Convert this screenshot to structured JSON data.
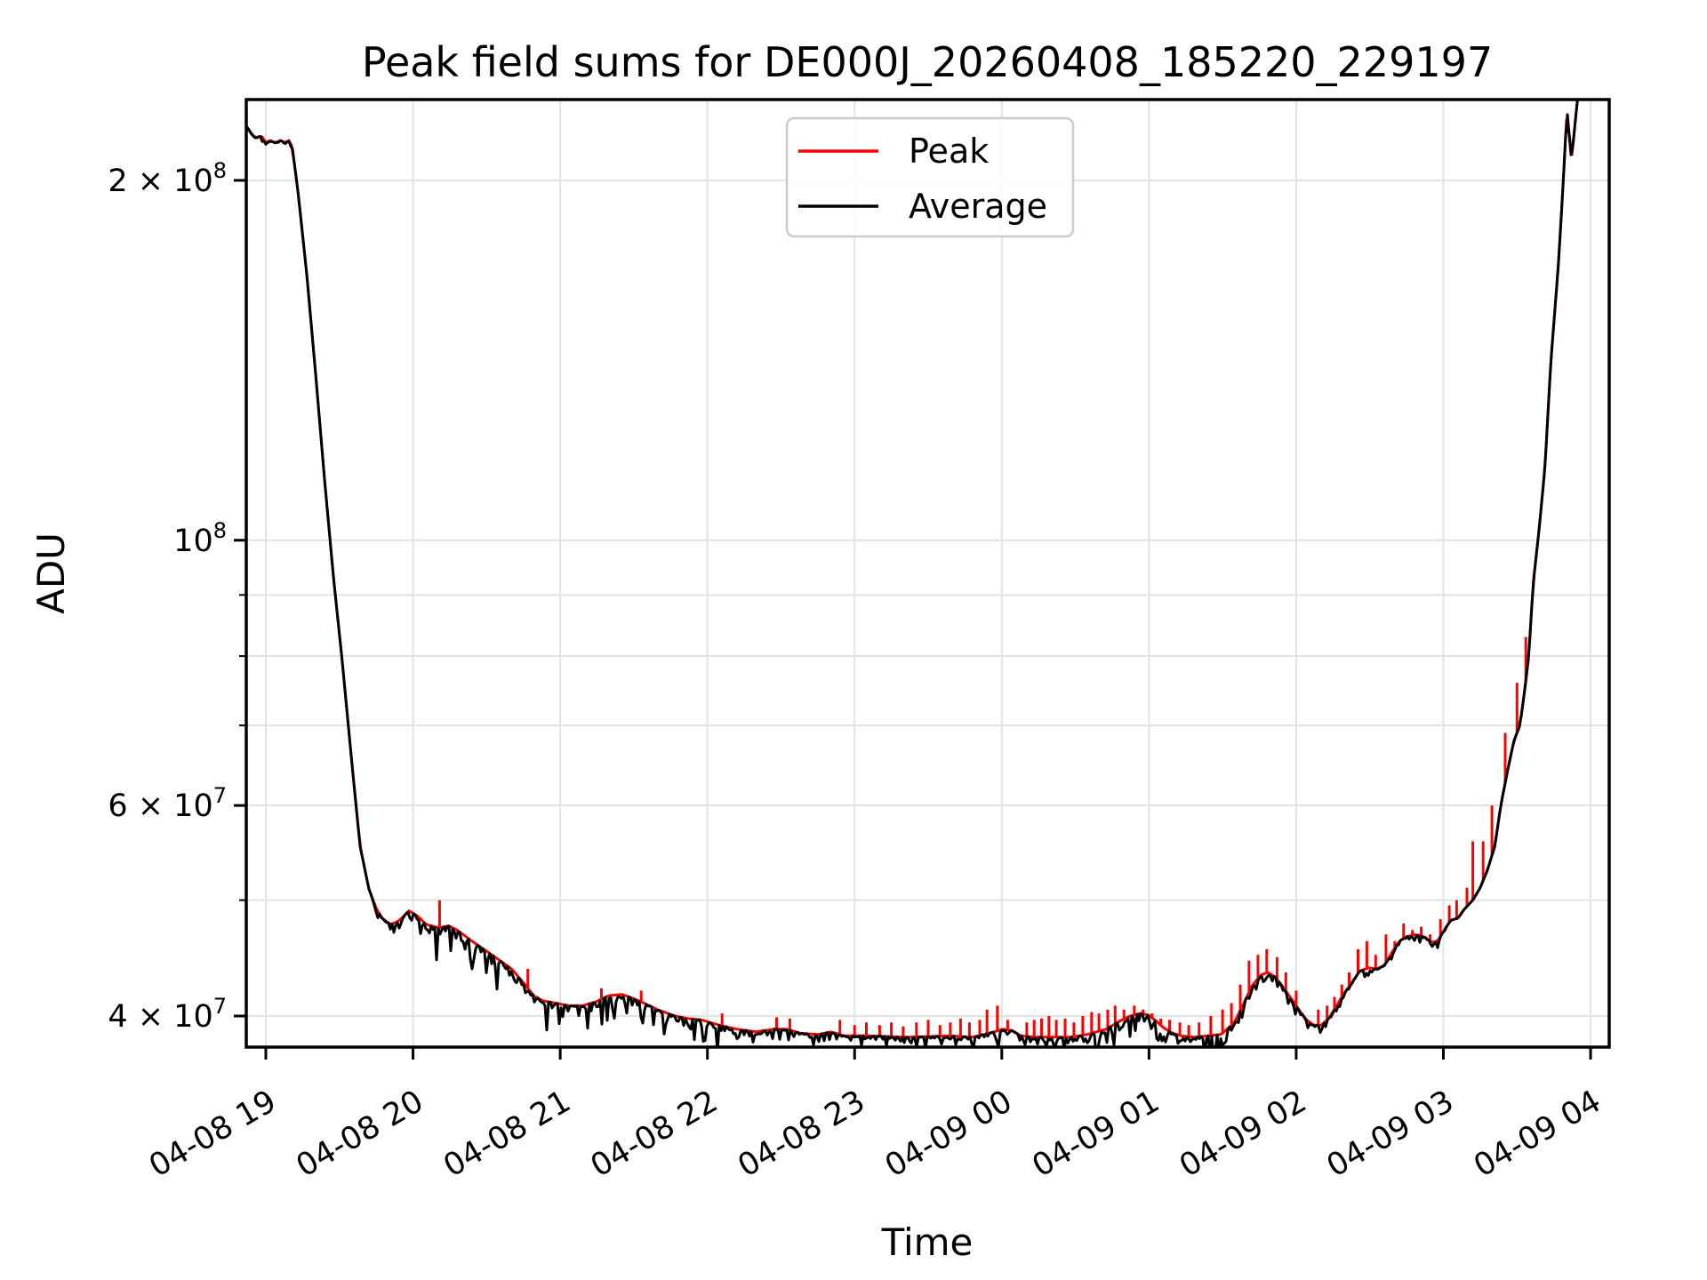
{
  "title": "Peak field sums for DE000J_20260408_185220_229197",
  "colors": {
    "peak": "#ff0000",
    "average": "#000000",
    "grid": "#e2e2e2",
    "spine": "#000000",
    "background": "#ffffff",
    "legend_border": "#cccccc"
  },
  "axes": {
    "x_label": "Time",
    "y_label": "ADU",
    "x_ticks": [
      {
        "hour": 19,
        "label": "04-08 19"
      },
      {
        "hour": 20,
        "label": "04-08 20"
      },
      {
        "hour": 21,
        "label": "04-08 21"
      },
      {
        "hour": 22,
        "label": "04-08 22"
      },
      {
        "hour": 23,
        "label": "04-08 23"
      },
      {
        "hour": 24,
        "label": "04-09 00"
      },
      {
        "hour": 25,
        "label": "04-09 01"
      },
      {
        "hour": 26,
        "label": "04-09 02"
      },
      {
        "hour": 27,
        "label": "04-09 03"
      },
      {
        "hour": 28,
        "label": "04-09 04"
      }
    ],
    "y_ticks_major": [
      {
        "prefix": "2 × 10",
        "sup": "8",
        "value": 200000000
      },
      {
        "prefix": "10",
        "sup": "8",
        "value": 100000000
      },
      {
        "prefix": "6 × 10",
        "sup": "7",
        "value": 60000000
      },
      {
        "prefix": "4 × 10",
        "sup": "7",
        "value": 40000000
      }
    ],
    "y_ticks_minor": [
      50000000,
      70000000,
      80000000,
      90000000
    ],
    "y_grid_values": [
      40000000,
      50000000,
      60000000,
      70000000,
      80000000,
      90000000,
      100000000,
      200000000
    ]
  },
  "legend": {
    "entries": [
      {
        "label": "Peak",
        "color": "#ff0000"
      },
      {
        "label": "Average",
        "color": "#000000"
      }
    ]
  },
  "chart_data": {
    "type": "line",
    "title": "Peak field sums for DE000J_20260408_185220_229197",
    "xlabel": "Time",
    "ylabel": "ADU",
    "yscale": "log",
    "grid": true,
    "legend_position": "upper center",
    "x_unit": "decimal hours from 04-08 00:00 (24+ = 04-09)",
    "xlim": [
      18.867,
      28.124
    ],
    "ylim": [
      37700000,
      233000000
    ],
    "series": [
      {
        "name": "Peak",
        "color": "#ff0000",
        "note": "same baseline as Average plus upward spikes",
        "spikes": [
          [
            20.18,
            50000000.0
          ],
          [
            20.78,
            43800000.0
          ],
          [
            21.28,
            42200000.0
          ],
          [
            21.55,
            42000000.0
          ],
          [
            22.1,
            40200000.0
          ],
          [
            22.47,
            39900000.0
          ],
          [
            22.56,
            39800000.0
          ],
          [
            22.9,
            39700000.0
          ],
          [
            23.0,
            39300000.0
          ],
          [
            23.08,
            39500000.0
          ],
          [
            23.17,
            39300000.0
          ],
          [
            23.25,
            39500000.0
          ],
          [
            23.33,
            39200000.0
          ],
          [
            23.42,
            39500000.0
          ],
          [
            23.5,
            39700000.0
          ],
          [
            23.58,
            39300000.0
          ],
          [
            23.65,
            39500000.0
          ],
          [
            23.72,
            39800000.0
          ],
          [
            23.78,
            39500000.0
          ],
          [
            23.85,
            39700000.0
          ],
          [
            23.9,
            40500000.0
          ],
          [
            23.97,
            40800000.0
          ],
          [
            24.04,
            39700000.0
          ],
          [
            24.17,
            39500000.0
          ],
          [
            24.22,
            39700000.0
          ],
          [
            24.27,
            39800000.0
          ],
          [
            24.32,
            40000000.0
          ],
          [
            24.37,
            39700000.0
          ],
          [
            24.43,
            39800000.0
          ],
          [
            24.49,
            39500000.0
          ],
          [
            24.55,
            40000000.0
          ],
          [
            24.61,
            40300000.0
          ],
          [
            24.66,
            40200000.0
          ],
          [
            24.72,
            40500000.0
          ],
          [
            24.77,
            40800000.0
          ],
          [
            24.83,
            40500000.0
          ],
          [
            24.9,
            40800000.0
          ],
          [
            24.96,
            40500000.0
          ],
          [
            25.02,
            40200000.0
          ],
          [
            25.08,
            39800000.0
          ],
          [
            25.14,
            39700000.0
          ],
          [
            25.21,
            39500000.0
          ],
          [
            25.27,
            39300000.0
          ],
          [
            25.34,
            39500000.0
          ],
          [
            25.42,
            40000000.0
          ],
          [
            25.5,
            40500000.0
          ],
          [
            25.56,
            41000000.0
          ],
          [
            25.62,
            42500000.0
          ],
          [
            25.68,
            44500000.0
          ],
          [
            25.74,
            45000000.0
          ],
          [
            25.8,
            45500000.0
          ],
          [
            25.87,
            44800000.0
          ],
          [
            25.93,
            43500000.0
          ],
          [
            26.0,
            42000000.0
          ],
          [
            26.15,
            40500000.0
          ],
          [
            26.21,
            40800000.0
          ],
          [
            26.26,
            41500000.0
          ],
          [
            26.31,
            42500000.0
          ],
          [
            26.36,
            43500000.0
          ],
          [
            26.42,
            45500000.0
          ],
          [
            26.48,
            46200000.0
          ],
          [
            26.54,
            45000000.0
          ],
          [
            26.61,
            46800000.0
          ],
          [
            26.67,
            46200000.0
          ],
          [
            26.73,
            47800000.0
          ],
          [
            26.79,
            47200000.0
          ],
          [
            26.85,
            47500000.0
          ],
          [
            26.91,
            46800000.0
          ],
          [
            26.98,
            48200000.0
          ],
          [
            27.04,
            49500000.0
          ],
          [
            27.09,
            50000000.0
          ],
          [
            27.16,
            51200000.0
          ],
          [
            27.2,
            56000000.0
          ],
          [
            27.27,
            56000000.0
          ],
          [
            27.33,
            60000000.0
          ],
          [
            27.42,
            69000000.0
          ],
          [
            27.5,
            76000000.0
          ],
          [
            27.56,
            83000000.0
          ]
        ]
      },
      {
        "name": "Average",
        "color": "#000000",
        "points": [
          [
            18.87,
            222000000.0
          ],
          [
            18.9,
            219000000.0
          ],
          [
            18.93,
            217000000.0
          ],
          [
            18.97,
            218000000.0
          ],
          [
            19.0,
            215000000.0
          ],
          [
            19.03,
            216000000.0
          ],
          [
            19.06,
            215000000.0
          ],
          [
            19.1,
            216000000.0
          ],
          [
            19.13,
            215000000.0
          ],
          [
            19.16,
            216000000.0
          ],
          [
            19.18,
            213000000.0
          ],
          [
            19.22,
            195000000.0
          ],
          [
            19.28,
            166000000.0
          ],
          [
            19.34,
            137000000.0
          ],
          [
            19.4,
            112000000.0
          ],
          [
            19.46,
            93000000.0
          ],
          [
            19.52,
            79000000.0
          ],
          [
            19.58,
            66000000.0
          ],
          [
            19.64,
            55500000.0
          ],
          [
            19.7,
            51100000.0
          ],
          [
            19.75,
            49200000.0
          ],
          [
            19.79,
            48300000.0
          ],
          [
            19.85,
            47700000.0
          ],
          [
            19.91,
            48100000.0
          ],
          [
            19.97,
            49000000.0
          ],
          [
            20.03,
            48500000.0
          ],
          [
            20.09,
            47700000.0
          ],
          [
            20.18,
            47400000.0
          ],
          [
            20.24,
            47600000.0
          ],
          [
            20.3,
            47200000.0
          ],
          [
            20.39,
            46300000.0
          ],
          [
            20.48,
            45500000.0
          ],
          [
            20.58,
            44600000.0
          ],
          [
            20.67,
            43800000.0
          ],
          [
            20.76,
            42500000.0
          ],
          [
            20.82,
            41600000.0
          ],
          [
            20.88,
            41200000.0
          ],
          [
            20.97,
            41000000.0
          ],
          [
            21.06,
            40800000.0
          ],
          [
            21.15,
            40800000.0
          ],
          [
            21.24,
            41100000.0
          ],
          [
            21.33,
            41600000.0
          ],
          [
            21.42,
            41700000.0
          ],
          [
            21.49,
            41400000.0
          ],
          [
            21.57,
            41000000.0
          ],
          [
            21.66,
            40500000.0
          ],
          [
            21.78,
            40000000.0
          ],
          [
            21.87,
            39800000.0
          ],
          [
            21.96,
            39700000.0
          ],
          [
            22.08,
            39300000.0
          ],
          [
            22.2,
            39000000.0
          ],
          [
            22.33,
            38800000.0
          ],
          [
            22.45,
            39000000.0
          ],
          [
            22.54,
            39000000.0
          ],
          [
            22.63,
            38700000.0
          ],
          [
            22.75,
            38600000.0
          ],
          [
            22.84,
            38800000.0
          ],
          [
            22.93,
            38500000.0
          ],
          [
            23.1,
            38500000.0
          ],
          [
            23.35,
            38400000.0
          ],
          [
            23.65,
            38500000.0
          ],
          [
            23.8,
            38400000.0
          ],
          [
            23.95,
            38800000.0
          ],
          [
            24.01,
            39000000.0
          ],
          [
            24.07,
            38900000.0
          ],
          [
            24.13,
            38500000.0
          ],
          [
            24.22,
            38400000.0
          ],
          [
            24.35,
            38400000.0
          ],
          [
            24.46,
            38400000.0
          ],
          [
            24.58,
            38600000.0
          ],
          [
            24.71,
            39000000.0
          ],
          [
            24.8,
            39600000.0
          ],
          [
            24.87,
            40000000.0
          ],
          [
            24.94,
            40200000.0
          ],
          [
            24.99,
            40100000.0
          ],
          [
            25.04,
            39700000.0
          ],
          [
            25.1,
            39100000.0
          ],
          [
            25.16,
            38700000.0
          ],
          [
            25.22,
            38500000.0
          ],
          [
            25.31,
            38400000.0
          ],
          [
            25.4,
            38500000.0
          ],
          [
            25.49,
            38600000.0
          ],
          [
            25.58,
            39500000.0
          ],
          [
            25.64,
            40900000.0
          ],
          [
            25.7,
            42400000.0
          ],
          [
            25.76,
            43300000.0
          ],
          [
            25.81,
            43500000.0
          ],
          [
            25.86,
            43100000.0
          ],
          [
            25.91,
            42300000.0
          ],
          [
            25.97,
            41300000.0
          ],
          [
            26.03,
            40300000.0
          ],
          [
            26.07,
            39700000.0
          ],
          [
            26.12,
            39300000.0
          ],
          [
            26.17,
            39300000.0
          ],
          [
            26.22,
            39800000.0
          ],
          [
            26.27,
            40700000.0
          ],
          [
            26.32,
            41700000.0
          ],
          [
            26.37,
            42500000.0
          ],
          [
            26.43,
            43600000.0
          ],
          [
            26.49,
            43900000.0
          ],
          [
            26.55,
            43800000.0
          ],
          [
            26.6,
            44100000.0
          ],
          [
            26.65,
            45200000.0
          ],
          [
            26.7,
            46200000.0
          ],
          [
            26.75,
            46600000.0
          ],
          [
            26.81,
            46800000.0
          ],
          [
            26.87,
            46600000.0
          ],
          [
            26.92,
            46100000.0
          ],
          [
            26.96,
            46200000.0
          ],
          [
            27.01,
            47300000.0
          ],
          [
            27.05,
            48100000.0
          ],
          [
            27.1,
            48300000.0
          ],
          [
            27.14,
            49100000.0
          ],
          [
            27.2,
            50000000.0
          ],
          [
            27.25,
            51200000.0
          ],
          [
            27.3,
            53000000.0
          ],
          [
            27.35,
            55500000.0
          ],
          [
            27.39,
            60000000.0
          ],
          [
            27.44,
            64500000.0
          ],
          [
            27.48,
            68000000.0
          ],
          [
            27.52,
            70000000.0
          ],
          [
            27.55,
            74500000.0
          ],
          [
            27.58,
            80000000.0
          ],
          [
            27.61,
            92000000.0
          ],
          [
            27.65,
            102000000.0
          ],
          [
            27.69,
            115000000.0
          ],
          [
            27.73,
            141000000.0
          ],
          [
            27.78,
            169000000.0
          ],
          [
            27.81,
            195000000.0
          ],
          [
            27.84,
            229000000.0
          ],
          [
            27.87,
            208000000.0
          ],
          [
            27.91,
            233000000.0
          ],
          [
            27.93,
            245000000.0
          ]
        ]
      }
    ],
    "noise_regions": [
      [
        18.87,
        19.18,
        0.005
      ],
      [
        19.72,
        20.1,
        0.02
      ],
      [
        20.1,
        20.95,
        0.035
      ],
      [
        20.95,
        22.1,
        0.03
      ],
      [
        22.1,
        23.93,
        0.012
      ],
      [
        23.93,
        24.15,
        0.02
      ],
      [
        24.15,
        24.62,
        0.012
      ],
      [
        24.62,
        25.55,
        0.025
      ],
      [
        25.55,
        26.2,
        0.012
      ],
      [
        26.2,
        27.05,
        0.01
      ]
    ]
  }
}
